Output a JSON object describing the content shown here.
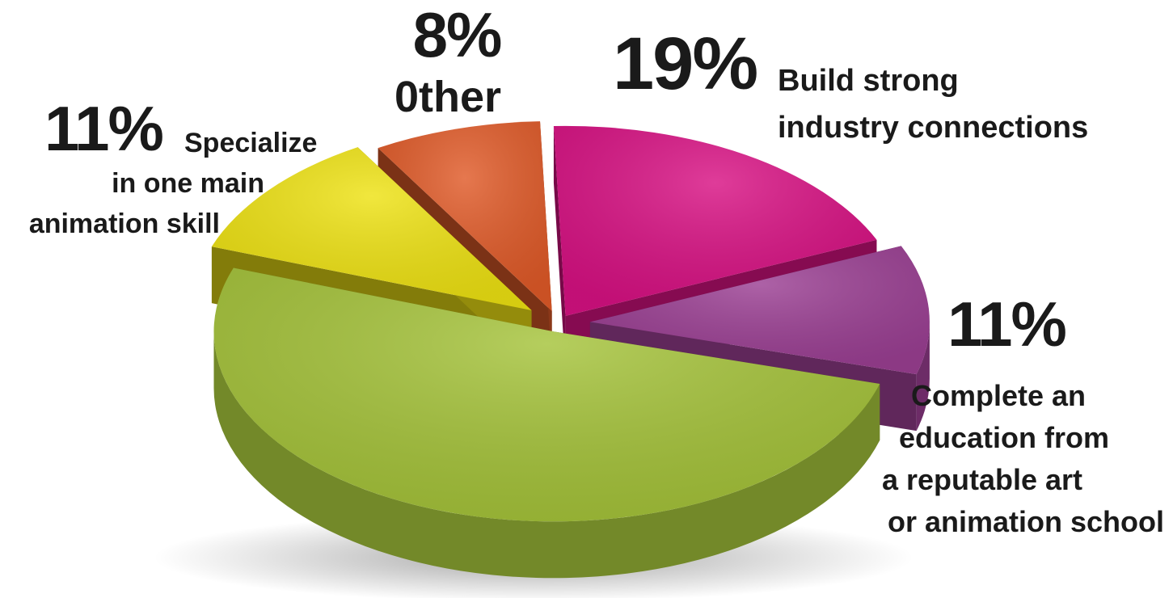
{
  "chart_data": {
    "type": "pie",
    "title": "",
    "slices": [
      {
        "label": "Build strong industry connections",
        "value": 19,
        "value_label": "19%",
        "color": "#d81183"
      },
      {
        "label": "Complete an education from a reputable art or animation school",
        "value": 11,
        "value_label": "11%",
        "color": "#9b3f93"
      },
      {
        "label": "",
        "value": 51,
        "value_label": "",
        "color": "#a5c33a"
      },
      {
        "label": "Specialize in one main animation skill",
        "value": 11,
        "value_label": "11%",
        "color": "#eee213"
      },
      {
        "label": "0ther",
        "value": 8,
        "value_label": "8%",
        "color": "#e05a28"
      }
    ]
  },
  "labels": {
    "industry_pct": "19%",
    "industry_line1": "Build strong",
    "industry_line2": "industry connections",
    "education_pct": "11%",
    "education_line1": "Complete an",
    "education_line2": "education from",
    "education_line3": "a reputable art",
    "education_line4": "or animation school",
    "specialize_pct": "11%",
    "specialize_line1": "Specialize",
    "specialize_line2": "in one main",
    "specialize_line3": "animation skill",
    "other_pct": "8%",
    "other_line1": "0ther"
  }
}
